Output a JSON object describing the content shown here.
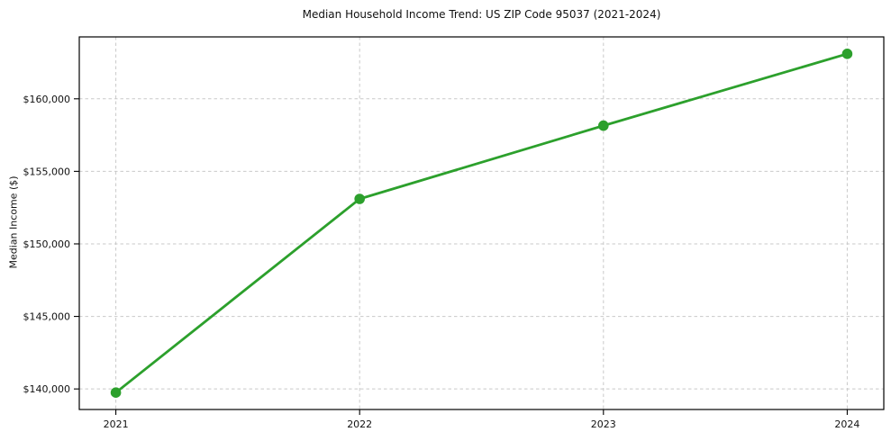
{
  "chart_data": {
    "type": "line",
    "title": "Median Household Income Trend: US ZIP Code 95037 (2021-2024)",
    "xlabel": "",
    "ylabel": "Median Income ($)",
    "x": [
      2021,
      2022,
      2023,
      2024
    ],
    "x_tick_labels": [
      "2021",
      "2022",
      "2023",
      "2024"
    ],
    "series": [
      {
        "name": "Median Household Income",
        "values": [
          139750,
          153100,
          158150,
          163100
        ]
      }
    ],
    "y_ticks": [
      140000,
      145000,
      150000,
      155000,
      160000
    ],
    "y_tick_labels": [
      "$140,000",
      "$145,000",
      "$150,000",
      "$155,000",
      "$160,000"
    ],
    "xlim": [
      2020.85,
      2024.15
    ],
    "ylim": [
      138583,
      164268
    ],
    "grid": true,
    "grid_style": "dashed",
    "legend_position": "none",
    "line_color": "#2ca02c",
    "grid_color": "#c9c9c9",
    "marker": "o"
  }
}
